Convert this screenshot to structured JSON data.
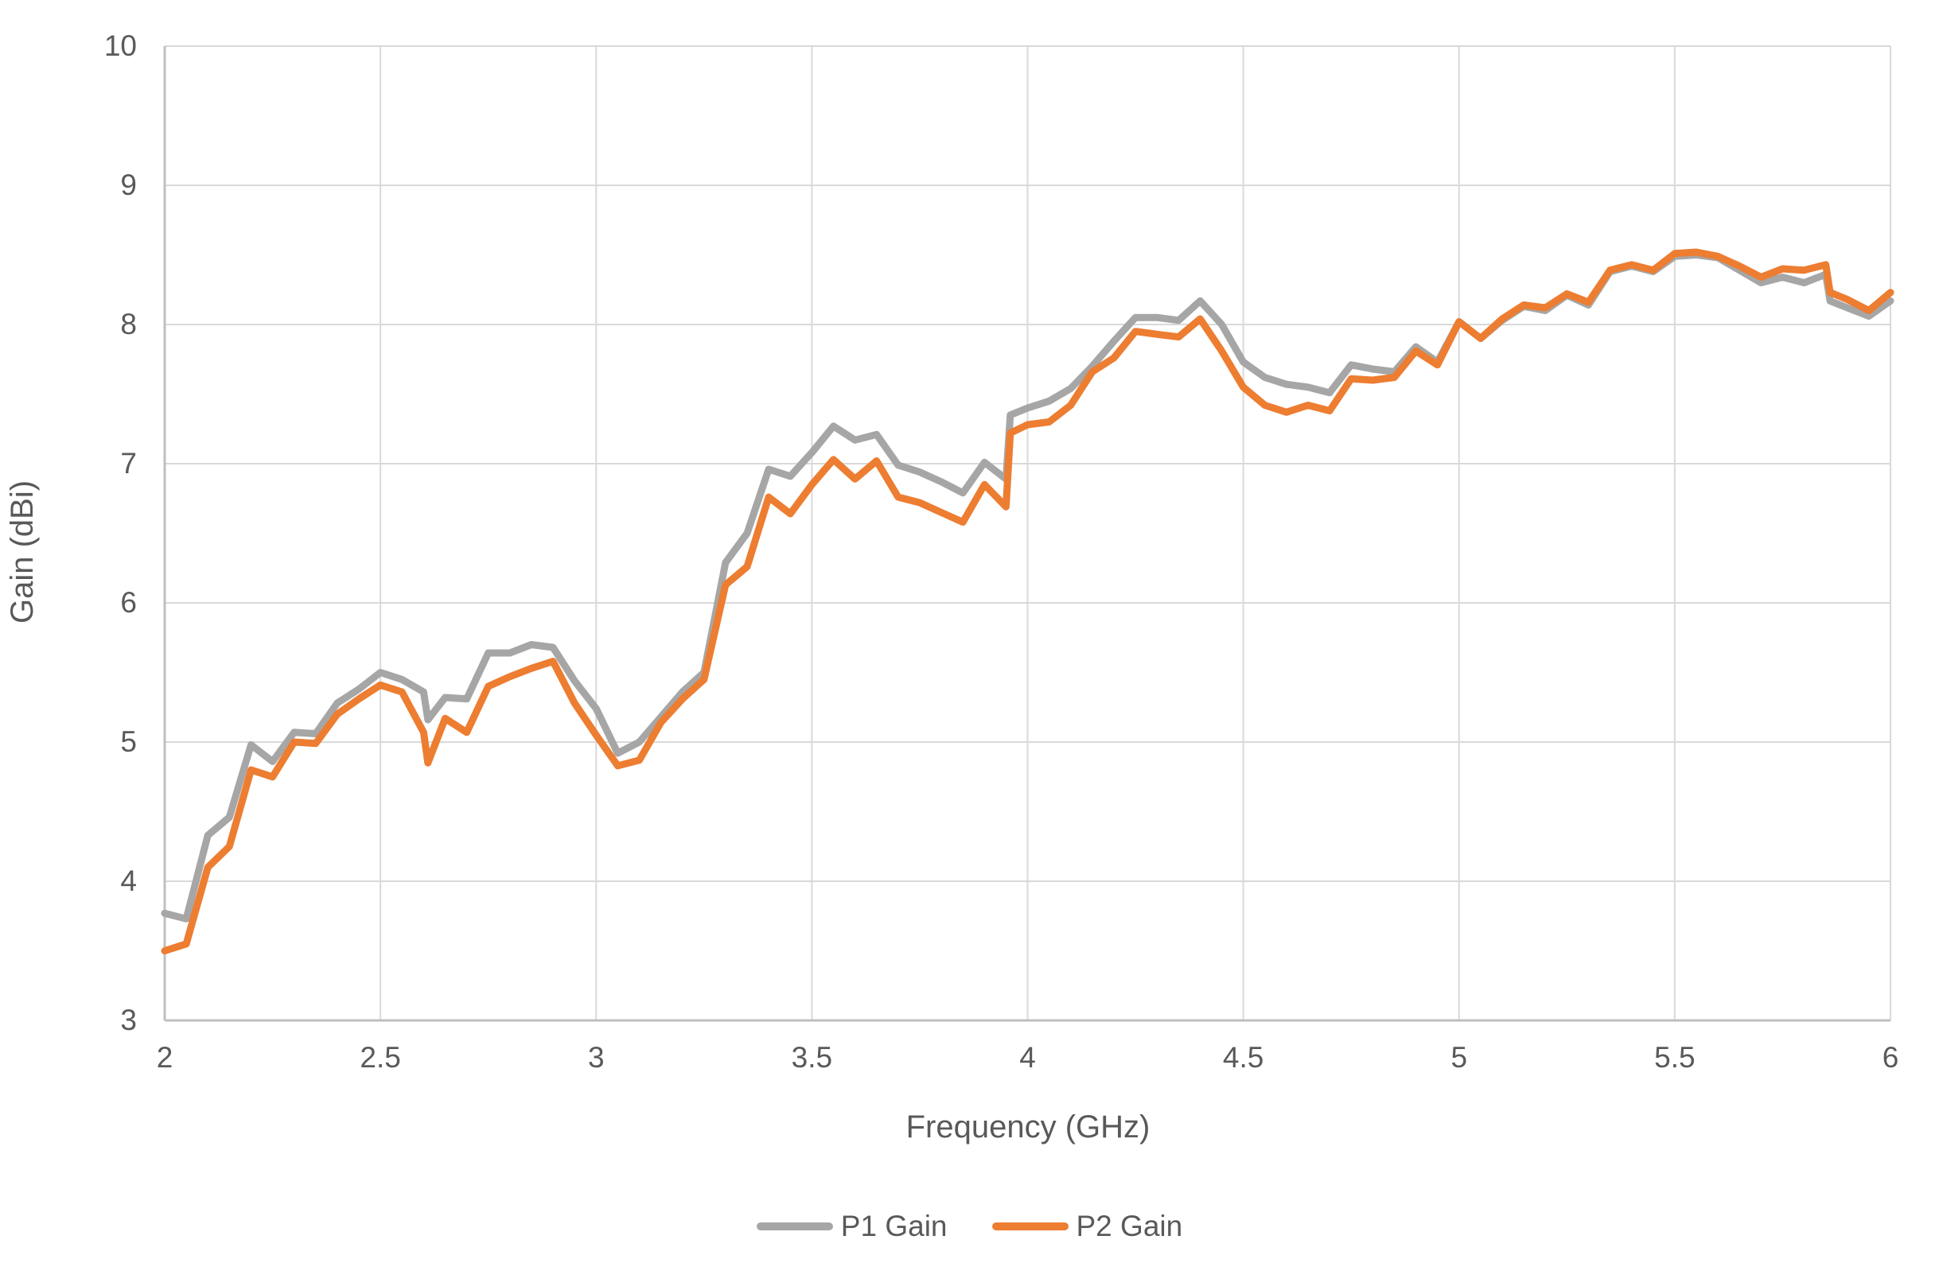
{
  "chart_data": {
    "type": "line",
    "title": "",
    "xlabel": "Frequency (GHz)",
    "ylabel": "Gain (dBi)",
    "xlim": [
      2,
      6
    ],
    "ylim": [
      3,
      10
    ],
    "grid": "on",
    "legend_position": "bottom",
    "x_tick_labels": [
      "2",
      "2.5",
      "3",
      "3.5",
      "4",
      "4.5",
      "5",
      "5.5",
      "6"
    ],
    "y_tick_labels": [
      "3",
      "4",
      "5",
      "6",
      "7",
      "8",
      "9",
      "10"
    ],
    "x": [
      2.0,
      2.05,
      2.1,
      2.15,
      2.2,
      2.25,
      2.3,
      2.35,
      2.4,
      2.45,
      2.5,
      2.55,
      2.6,
      2.61,
      2.65,
      2.7,
      2.75,
      2.8,
      2.85,
      2.9,
      2.95,
      3.0,
      3.05,
      3.1,
      3.15,
      3.2,
      3.25,
      3.3,
      3.35,
      3.4,
      3.45,
      3.5,
      3.55,
      3.6,
      3.65,
      3.7,
      3.75,
      3.8,
      3.85,
      3.9,
      3.95,
      3.96,
      4.0,
      4.05,
      4.1,
      4.15,
      4.2,
      4.25,
      4.3,
      4.35,
      4.4,
      4.45,
      4.5,
      4.55,
      4.6,
      4.65,
      4.7,
      4.75,
      4.8,
      4.85,
      4.9,
      4.95,
      5.0,
      5.05,
      5.1,
      5.15,
      5.2,
      5.25,
      5.3,
      5.35,
      5.4,
      5.45,
      5.5,
      5.55,
      5.6,
      5.65,
      5.7,
      5.75,
      5.8,
      5.85,
      5.86,
      5.9,
      5.95,
      6.0
    ],
    "series": [
      {
        "name": "P1 Gain",
        "color": "#A6A6A6",
        "values": [
          3.77,
          3.73,
          4.33,
          4.46,
          4.98,
          4.86,
          5.07,
          5.06,
          5.28,
          5.38,
          5.5,
          5.45,
          5.36,
          5.16,
          5.32,
          5.31,
          5.64,
          5.64,
          5.7,
          5.68,
          5.44,
          5.24,
          4.92,
          5.0,
          5.18,
          5.36,
          5.5,
          6.29,
          6.5,
          6.96,
          6.91,
          7.08,
          7.27,
          7.17,
          7.21,
          6.99,
          6.94,
          6.87,
          6.79,
          7.01,
          6.89,
          7.35,
          7.4,
          7.45,
          7.54,
          7.7,
          7.88,
          8.05,
          8.05,
          8.03,
          8.17,
          8.0,
          7.73,
          7.62,
          7.57,
          7.55,
          7.51,
          7.71,
          7.68,
          7.66,
          7.84,
          7.73,
          8.02,
          7.9,
          8.03,
          8.13,
          8.1,
          8.21,
          8.14,
          8.38,
          8.42,
          8.38,
          8.49,
          8.5,
          8.48,
          8.39,
          8.3,
          8.34,
          8.3,
          8.36,
          8.17,
          8.12,
          8.06,
          8.17
        ]
      },
      {
        "name": "P2 Gain",
        "color": "#ED7D31",
        "values": [
          3.5,
          3.55,
          4.1,
          4.25,
          4.8,
          4.75,
          5.0,
          4.99,
          5.2,
          5.31,
          5.41,
          5.36,
          5.07,
          4.85,
          5.17,
          5.07,
          5.4,
          5.47,
          5.53,
          5.58,
          5.28,
          5.05,
          4.83,
          4.87,
          5.14,
          5.31,
          5.45,
          6.13,
          6.26,
          6.76,
          6.64,
          6.85,
          7.03,
          6.89,
          7.02,
          6.76,
          6.72,
          6.65,
          6.58,
          6.85,
          6.69,
          7.22,
          7.28,
          7.3,
          7.42,
          7.66,
          7.76,
          7.95,
          7.93,
          7.91,
          8.04,
          7.81,
          7.55,
          7.42,
          7.37,
          7.42,
          7.38,
          7.61,
          7.6,
          7.62,
          7.81,
          7.71,
          8.02,
          7.9,
          8.04,
          8.14,
          8.12,
          8.22,
          8.16,
          8.39,
          8.43,
          8.39,
          8.51,
          8.52,
          8.49,
          8.42,
          8.34,
          8.4,
          8.39,
          8.43,
          8.23,
          8.18,
          8.1,
          8.23
        ]
      }
    ],
    "colors": {
      "gridline": "#D9D9D9",
      "axis_line": "#BFBFBF",
      "text": "#595959",
      "p1": "#A6A6A6",
      "p2": "#ED7D31"
    }
  },
  "axes": {
    "x_title": "Frequency (GHz)",
    "y_title": "Gain (dBi)"
  },
  "legend": {
    "items": [
      {
        "label": "P1 Gain",
        "color": "#A6A6A6"
      },
      {
        "label": "P2 Gain",
        "color": "#ED7D31"
      }
    ]
  }
}
